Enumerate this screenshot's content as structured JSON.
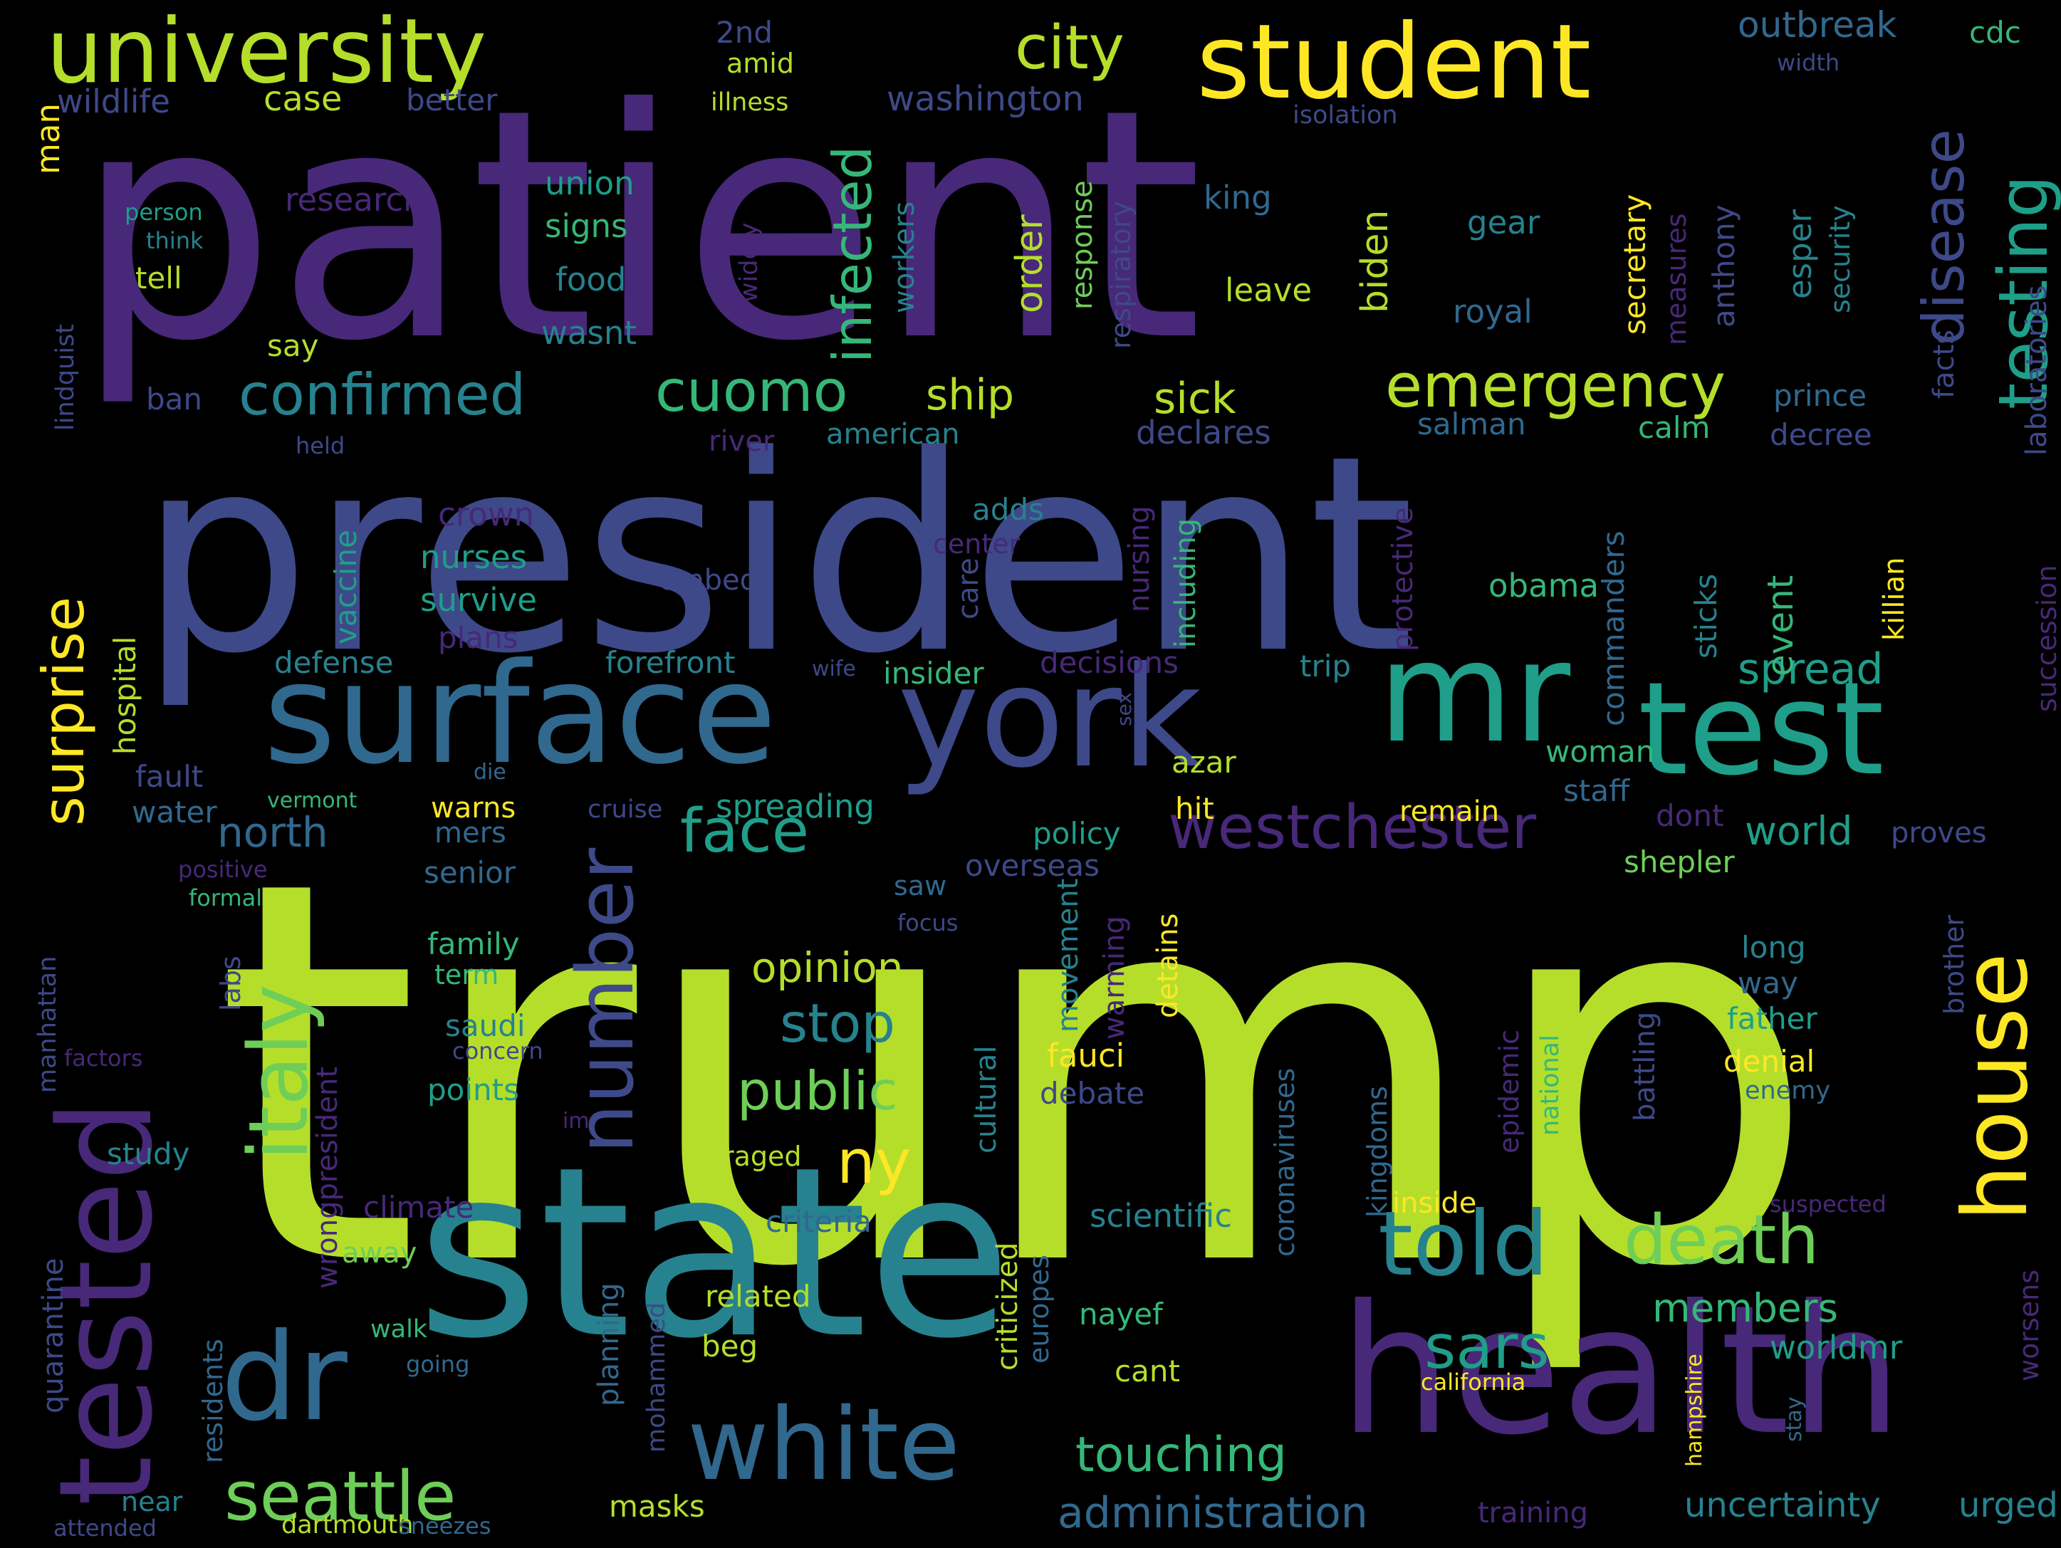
{
  "palette": {
    "background": "#000000",
    "viridis": [
      "#440154",
      "#482878",
      "#3e4989",
      "#31688e",
      "#26828e",
      "#1f9e89",
      "#35b779",
      "#6ece58",
      "#b5de2b",
      "#fde725"
    ]
  },
  "words": [
    {
      "text": "trump",
      "color": "#b5de2b",
      "orientation": "horizontal"
    },
    {
      "text": "patient",
      "color": "#482878",
      "orientation": "horizontal"
    },
    {
      "text": "president",
      "color": "#3e4989",
      "orientation": "horizontal"
    },
    {
      "text": "state",
      "color": "#26828e",
      "orientation": "horizontal"
    },
    {
      "text": "health",
      "color": "#482878",
      "orientation": "horizontal"
    },
    {
      "text": "surface",
      "color": "#31688e",
      "orientation": "horizontal"
    },
    {
      "text": "york",
      "color": "#3e4989",
      "orientation": "horizontal"
    },
    {
      "text": "mr",
      "color": "#1f9e89",
      "orientation": "horizontal"
    },
    {
      "text": "test",
      "color": "#1f9e89",
      "orientation": "horizontal"
    },
    {
      "text": "tested",
      "color": "#482878",
      "orientation": "vertical"
    },
    {
      "text": "student",
      "color": "#fde725",
      "orientation": "horizontal"
    },
    {
      "text": "dr",
      "color": "#31688e",
      "orientation": "horizontal"
    },
    {
      "text": "white",
      "color": "#31688e",
      "orientation": "horizontal"
    },
    {
      "text": "university",
      "color": "#b5de2b",
      "orientation": "horizontal"
    },
    {
      "text": "italy",
      "color": "#6ece58",
      "orientation": "vertical"
    },
    {
      "text": "number",
      "color": "#3e4989",
      "orientation": "vertical"
    },
    {
      "text": "house",
      "color": "#fde725",
      "orientation": "vertical"
    },
    {
      "text": "told",
      "color": "#26828e",
      "orientation": "horizontal"
    },
    {
      "text": "westchester",
      "color": "#482878",
      "orientation": "horizontal"
    },
    {
      "text": "seattle",
      "color": "#6ece58",
      "orientation": "horizontal"
    },
    {
      "text": "death",
      "color": "#6ece58",
      "orientation": "horizontal"
    },
    {
      "text": "emergency",
      "color": "#b5de2b",
      "orientation": "horizontal"
    },
    {
      "text": "confirmed",
      "color": "#26828e",
      "orientation": "horizontal"
    },
    {
      "text": "cuomo",
      "color": "#35b779",
      "orientation": "horizontal"
    },
    {
      "text": "city",
      "color": "#b5de2b",
      "orientation": "horizontal"
    },
    {
      "text": "testing",
      "color": "#1f9e89",
      "orientation": "vertical"
    },
    {
      "text": "disease",
      "color": "#3e4989",
      "orientation": "vertical"
    },
    {
      "text": "infected",
      "color": "#35b779",
      "orientation": "vertical"
    },
    {
      "text": "surprise",
      "color": "#fde725",
      "orientation": "vertical"
    },
    {
      "text": "face",
      "color": "#1f9e89",
      "orientation": "horizontal"
    },
    {
      "text": "public",
      "color": "#6ece58",
      "orientation": "horizontal"
    },
    {
      "text": "ny",
      "color": "#fde725",
      "orientation": "horizontal"
    },
    {
      "text": "touching",
      "color": "#35b779",
      "orientation": "horizontal"
    },
    {
      "text": "sars",
      "color": "#1f9e89",
      "orientation": "horizontal"
    },
    {
      "text": "stop",
      "color": "#26828e",
      "orientation": "horizontal"
    },
    {
      "text": "administration",
      "color": "#31688e",
      "orientation": "horizontal"
    },
    {
      "text": "members",
      "color": "#35b779",
      "orientation": "horizontal"
    },
    {
      "text": "outbreak",
      "color": "#31688e",
      "orientation": "horizontal"
    },
    {
      "text": "opinion",
      "color": "#b5de2b",
      "orientation": "horizontal"
    },
    {
      "text": "spread",
      "color": "#1f9e89",
      "orientation": "horizontal"
    },
    {
      "text": "north",
      "color": "#31688e",
      "orientation": "horizontal"
    },
    {
      "text": "ship",
      "color": "#b5de2b",
      "orientation": "horizontal"
    },
    {
      "text": "sick",
      "color": "#b5de2b",
      "orientation": "horizontal"
    },
    {
      "text": "world",
      "color": "#1f9e89",
      "orientation": "horizontal"
    },
    {
      "text": "uncertainty",
      "color": "#26828e",
      "orientation": "horizontal"
    },
    {
      "text": "urged",
      "color": "#26828e",
      "orientation": "horizontal"
    },
    {
      "text": "worldmr",
      "color": "#1f9e89",
      "orientation": "horizontal"
    },
    {
      "text": "event",
      "color": "#35b779",
      "orientation": "vertical"
    },
    {
      "text": "biden",
      "color": "#b5de2b",
      "orientation": "vertical"
    },
    {
      "text": "order",
      "color": "#b5de2b",
      "orientation": "vertical"
    },
    {
      "text": "case",
      "color": "#b5de2b",
      "orientation": "horizontal"
    },
    {
      "text": "washington",
      "color": "#3e4989",
      "orientation": "horizontal"
    },
    {
      "text": "wildlife",
      "color": "#3e4989",
      "orientation": "horizontal"
    },
    {
      "text": "better",
      "color": "#3e4989",
      "orientation": "horizontal"
    },
    {
      "text": "2nd",
      "color": "#3e4989",
      "orientation": "horizontal"
    },
    {
      "text": "amid",
      "color": "#b5de2b",
      "orientation": "horizontal"
    },
    {
      "text": "illness",
      "color": "#b5de2b",
      "orientation": "horizontal"
    },
    {
      "text": "cdc",
      "color": "#35b779",
      "orientation": "horizontal"
    },
    {
      "text": "width",
      "color": "#3e4989",
      "orientation": "horizontal"
    },
    {
      "text": "isolation",
      "color": "#3e4989",
      "orientation": "horizontal"
    },
    {
      "text": "man",
      "color": "#fde725",
      "orientation": "vertical"
    },
    {
      "text": "research",
      "color": "#482878",
      "orientation": "horizontal"
    },
    {
      "text": "union",
      "color": "#1f9e89",
      "orientation": "horizontal"
    },
    {
      "text": "signs",
      "color": "#35b779",
      "orientation": "horizontal"
    },
    {
      "text": "food",
      "color": "#26828e",
      "orientation": "horizontal"
    },
    {
      "text": "wasnt",
      "color": "#26828e",
      "orientation": "horizontal"
    },
    {
      "text": "person",
      "color": "#1f9e89",
      "orientation": "horizontal"
    },
    {
      "text": "think",
      "color": "#26828e",
      "orientation": "horizontal"
    },
    {
      "text": "tell",
      "color": "#b5de2b",
      "orientation": "horizontal"
    },
    {
      "text": "say",
      "color": "#b5de2b",
      "orientation": "horizontal"
    },
    {
      "text": "ban",
      "color": "#3e4989",
      "orientation": "horizontal"
    },
    {
      "text": "held",
      "color": "#3e4989",
      "orientation": "horizontal"
    },
    {
      "text": "lindquist",
      "color": "#3e4989",
      "orientation": "vertical"
    },
    {
      "text": "widely",
      "color": "#482878",
      "orientation": "vertical"
    },
    {
      "text": "workers",
      "color": "#26828e",
      "orientation": "vertical"
    },
    {
      "text": "king",
      "color": "#31688e",
      "orientation": "horizontal"
    },
    {
      "text": "gear",
      "color": "#26828e",
      "orientation": "horizontal"
    },
    {
      "text": "leave",
      "color": "#b5de2b",
      "orientation": "horizontal"
    },
    {
      "text": "royal",
      "color": "#31688e",
      "orientation": "horizontal"
    },
    {
      "text": "response",
      "color": "#6ece58",
      "orientation": "vertical"
    },
    {
      "text": "respiratory",
      "color": "#3e4989",
      "orientation": "vertical"
    },
    {
      "text": "secretary",
      "color": "#fde725",
      "orientation": "vertical"
    },
    {
      "text": "measures",
      "color": "#482878",
      "orientation": "vertical"
    },
    {
      "text": "anthony",
      "color": "#3e4989",
      "orientation": "vertical"
    },
    {
      "text": "esper",
      "color": "#26828e",
      "orientation": "vertical"
    },
    {
      "text": "security",
      "color": "#26828e",
      "orientation": "vertical"
    },
    {
      "text": "facts",
      "color": "#3e4989",
      "orientation": "vertical"
    },
    {
      "text": "laboratories",
      "color": "#3e4989",
      "orientation": "vertical"
    },
    {
      "text": "succession",
      "color": "#482878",
      "orientation": "vertical"
    },
    {
      "text": "prince",
      "color": "#31688e",
      "orientation": "horizontal"
    },
    {
      "text": "decree",
      "color": "#3e4989",
      "orientation": "horizontal"
    },
    {
      "text": "calm",
      "color": "#35b779",
      "orientation": "horizontal"
    },
    {
      "text": "salman",
      "color": "#31688e",
      "orientation": "horizontal"
    },
    {
      "text": "declares",
      "color": "#3e4989",
      "orientation": "horizontal"
    },
    {
      "text": "american",
      "color": "#26828e",
      "orientation": "horizontal"
    },
    {
      "text": "river",
      "color": "#482878",
      "orientation": "horizontal"
    },
    {
      "text": "crown",
      "color": "#482878",
      "orientation": "horizontal"
    },
    {
      "text": "adds",
      "color": "#26828e",
      "orientation": "horizontal"
    },
    {
      "text": "center",
      "color": "#482878",
      "orientation": "horizontal"
    },
    {
      "text": "nurses",
      "color": "#1f9e89",
      "orientation": "horizontal"
    },
    {
      "text": "embeds",
      "color": "#3e4989",
      "orientation": "horizontal"
    },
    {
      "text": "survive",
      "color": "#1f9e89",
      "orientation": "horizontal"
    },
    {
      "text": "plans",
      "color": "#482878",
      "orientation": "horizontal"
    },
    {
      "text": "defense",
      "color": "#26828e",
      "orientation": "horizontal"
    },
    {
      "text": "forefront",
      "color": "#26828e",
      "orientation": "horizontal"
    },
    {
      "text": "wife",
      "color": "#3e4989",
      "orientation": "horizontal"
    },
    {
      "text": "insider",
      "color": "#35b779",
      "orientation": "horizontal"
    },
    {
      "text": "decisions",
      "color": "#482878",
      "orientation": "horizontal"
    },
    {
      "text": "trip",
      "color": "#26828e",
      "orientation": "horizontal"
    },
    {
      "text": "vaccine",
      "color": "#1f9e89",
      "orientation": "vertical"
    },
    {
      "text": "hospital",
      "color": "#b5de2b",
      "orientation": "vertical"
    },
    {
      "text": "care",
      "color": "#3e4989",
      "orientation": "vertical"
    },
    {
      "text": "nursing",
      "color": "#482878",
      "orientation": "vertical"
    },
    {
      "text": "including",
      "color": "#35b779",
      "orientation": "vertical"
    },
    {
      "text": "protective",
      "color": "#482878",
      "orientation": "vertical"
    },
    {
      "text": "obama",
      "color": "#35b779",
      "orientation": "horizontal"
    },
    {
      "text": "commanders",
      "color": "#31688e",
      "orientation": "vertical"
    },
    {
      "text": "sticks",
      "color": "#26828e",
      "orientation": "vertical"
    },
    {
      "text": "killian",
      "color": "#fde725",
      "orientation": "vertical"
    },
    {
      "text": "sex",
      "color": "#3e4989",
      "orientation": "vertical"
    },
    {
      "text": "woman",
      "color": "#35b779",
      "orientation": "horizontal"
    },
    {
      "text": "staff",
      "color": "#31688e",
      "orientation": "horizontal"
    },
    {
      "text": "dont",
      "color": "#482878",
      "orientation": "horizontal"
    },
    {
      "text": "remain",
      "color": "#fde725",
      "orientation": "horizontal"
    },
    {
      "text": "shepler",
      "color": "#6ece58",
      "orientation": "horizontal"
    },
    {
      "text": "proves",
      "color": "#3e4989",
      "orientation": "horizontal"
    },
    {
      "text": "fault",
      "color": "#3e4989",
      "orientation": "horizontal"
    },
    {
      "text": "water",
      "color": "#31688e",
      "orientation": "horizontal"
    },
    {
      "text": "die",
      "color": "#31688e",
      "orientation": "horizontal"
    },
    {
      "text": "vermont",
      "color": "#35b779",
      "orientation": "horizontal"
    },
    {
      "text": "warns",
      "color": "#fde725",
      "orientation": "horizontal"
    },
    {
      "text": "cruise",
      "color": "#3e4989",
      "orientation": "horizontal"
    },
    {
      "text": "spreading",
      "color": "#1f9e89",
      "orientation": "horizontal"
    },
    {
      "text": "azar",
      "color": "#b5de2b",
      "orientation": "horizontal"
    },
    {
      "text": "hit",
      "color": "#fde725",
      "orientation": "horizontal"
    },
    {
      "text": "mers",
      "color": "#31688e",
      "orientation": "horizontal"
    },
    {
      "text": "policy",
      "color": "#1f9e89",
      "orientation": "horizontal"
    },
    {
      "text": "senior",
      "color": "#31688e",
      "orientation": "horizontal"
    },
    {
      "text": "overseas",
      "color": "#3e4989",
      "orientation": "horizontal"
    },
    {
      "text": "positive",
      "color": "#482878",
      "orientation": "horizontal"
    },
    {
      "text": "formal",
      "color": "#35b779",
      "orientation": "horizontal"
    },
    {
      "text": "focus",
      "color": "#3e4989",
      "orientation": "horizontal"
    },
    {
      "text": "saw",
      "color": "#31688e",
      "orientation": "horizontal"
    },
    {
      "text": "family",
      "color": "#35b779",
      "orientation": "horizontal"
    },
    {
      "text": "term",
      "color": "#35b779",
      "orientation": "horizontal"
    },
    {
      "text": "labs",
      "color": "#3e4989",
      "orientation": "vertical"
    },
    {
      "text": "manhattan",
      "color": "#3e4989",
      "orientation": "vertical"
    },
    {
      "text": "factors",
      "color": "#482878",
      "orientation": "horizontal"
    },
    {
      "text": "concern",
      "color": "#3e4989",
      "orientation": "horizontal"
    },
    {
      "text": "saudi",
      "color": "#26828e",
      "orientation": "horizontal"
    },
    {
      "text": "points",
      "color": "#1f9e89",
      "orientation": "horizontal"
    },
    {
      "text": "im",
      "color": "#482878",
      "orientation": "horizontal"
    },
    {
      "text": "movement",
      "color": "#26828e",
      "orientation": "vertical"
    },
    {
      "text": "warming",
      "color": "#482878",
      "orientation": "vertical"
    },
    {
      "text": "detains",
      "color": "#fde725",
      "orientation": "vertical"
    },
    {
      "text": "fauci",
      "color": "#fde725",
      "orientation": "horizontal"
    },
    {
      "text": "debate",
      "color": "#3e4989",
      "orientation": "horizontal"
    },
    {
      "text": "cultural",
      "color": "#26828e",
      "orientation": "vertical"
    },
    {
      "text": "epidemic",
      "color": "#482878",
      "orientation": "vertical"
    },
    {
      "text": "national",
      "color": "#35b779",
      "orientation": "vertical"
    },
    {
      "text": "battling",
      "color": "#3e4989",
      "orientation": "vertical"
    },
    {
      "text": "long",
      "color": "#26828e",
      "orientation": "horizontal"
    },
    {
      "text": "way",
      "color": "#31688e",
      "orientation": "horizontal"
    },
    {
      "text": "father",
      "color": "#1f9e89",
      "orientation": "horizontal"
    },
    {
      "text": "denial",
      "color": "#fde725",
      "orientation": "horizontal"
    },
    {
      "text": "enemy",
      "color": "#31688e",
      "orientation": "horizontal"
    },
    {
      "text": "brother",
      "color": "#3e4989",
      "orientation": "vertical"
    },
    {
      "text": "coronaviruses",
      "color": "#31688e",
      "orientation": "vertical"
    },
    {
      "text": "kingdoms",
      "color": "#31688e",
      "orientation": "vertical"
    },
    {
      "text": "study",
      "color": "#26828e",
      "orientation": "horizontal"
    },
    {
      "text": "raged",
      "color": "#b5de2b",
      "orientation": "horizontal"
    },
    {
      "text": "climate",
      "color": "#482878",
      "orientation": "horizontal"
    },
    {
      "text": "wrongpresident",
      "color": "#482878",
      "orientation": "vertical"
    },
    {
      "text": "quarantine",
      "color": "#3e4989",
      "orientation": "vertical"
    },
    {
      "text": "away",
      "color": "#6ece58",
      "orientation": "horizontal"
    },
    {
      "text": "criteria",
      "color": "#31688e",
      "orientation": "horizontal"
    },
    {
      "text": "scientific",
      "color": "#26828e",
      "orientation": "horizontal"
    },
    {
      "text": "inside",
      "color": "#fde725",
      "orientation": "horizontal"
    },
    {
      "text": "suspected",
      "color": "#482878",
      "orientation": "horizontal"
    },
    {
      "text": "worsens",
      "color": "#482878",
      "orientation": "vertical"
    },
    {
      "text": "residents",
      "color": "#31688e",
      "orientation": "vertical"
    },
    {
      "text": "walk",
      "color": "#35b779",
      "orientation": "horizontal"
    },
    {
      "text": "going",
      "color": "#31688e",
      "orientation": "horizontal"
    },
    {
      "text": "planning",
      "color": "#31688e",
      "orientation": "vertical"
    },
    {
      "text": "mohammed",
      "color": "#3e4989",
      "orientation": "vertical"
    },
    {
      "text": "related",
      "color": "#b5de2b",
      "orientation": "horizontal"
    },
    {
      "text": "beg",
      "color": "#b5de2b",
      "orientation": "horizontal"
    },
    {
      "text": "criticized",
      "color": "#b5de2b",
      "orientation": "vertical"
    },
    {
      "text": "europes",
      "color": "#31688e",
      "orientation": "vertical"
    },
    {
      "text": "nayef",
      "color": "#35b779",
      "orientation": "horizontal"
    },
    {
      "text": "cant",
      "color": "#b5de2b",
      "orientation": "horizontal"
    },
    {
      "text": "california",
      "color": "#fde725",
      "orientation": "horizontal"
    },
    {
      "text": "hampshire",
      "color": "#fde725",
      "orientation": "vertical"
    },
    {
      "text": "stay",
      "color": "#31688e",
      "orientation": "vertical"
    },
    {
      "text": "near",
      "color": "#26828e",
      "orientation": "horizontal"
    },
    {
      "text": "masks",
      "color": "#b5de2b",
      "orientation": "horizontal"
    },
    {
      "text": "attended",
      "color": "#3e4989",
      "orientation": "horizontal"
    },
    {
      "text": "dartmouth",
      "color": "#b5de2b",
      "orientation": "horizontal"
    },
    {
      "text": "sneezes",
      "color": "#31688e",
      "orientation": "horizontal"
    },
    {
      "text": "training",
      "color": "#482878",
      "orientation": "horizontal"
    }
  ]
}
